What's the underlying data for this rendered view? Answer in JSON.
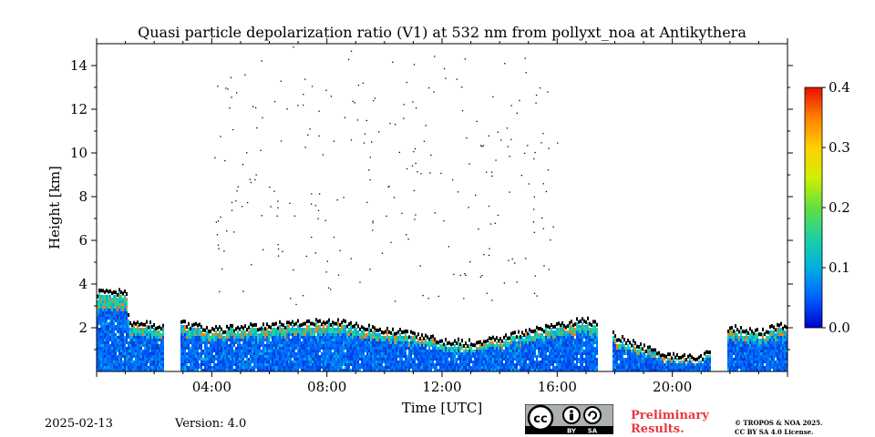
{
  "footer": {
    "date": "2025-02-13",
    "version": "Version: 4.0",
    "preliminary_line1": "Preliminary",
    "preliminary_line2": "Results.",
    "copyright_line1": "© TROPOS & NOA 2025.",
    "copyright_line2": "CC BY SA 4.0 License.",
    "license_badge": {
      "cc": "cc",
      "by": "BY",
      "sa": "SA"
    }
  },
  "chart_data": {
    "type": "heatmap",
    "title": "Quasi particle depolarization ratio (V1) at 532 nm from pollyxt_noa at Antikythera",
    "xlabel": "Time [UTC]",
    "ylabel": "Height [km]",
    "xlim": [
      "00:00",
      "24:00"
    ],
    "ylim": [
      0,
      15
    ],
    "x_ticks": [
      "04:00",
      "08:00",
      "12:00",
      "16:00",
      "20:00"
    ],
    "x_tick_hours": [
      4,
      8,
      12,
      16,
      20
    ],
    "y_ticks": [
      2,
      4,
      6,
      8,
      10,
      12,
      14
    ],
    "colorbar": {
      "range": [
        0.0,
        0.4
      ],
      "ticks": [
        "0.0",
        "0.1",
        "0.2",
        "0.3",
        "0.4"
      ],
      "colormap": "jet",
      "colors": [
        "#0000c8",
        "#0060ff",
        "#00b0e0",
        "#20d0a0",
        "#60e040",
        "#d0f000",
        "#ffd000",
        "#ff8000",
        "#e81000"
      ]
    },
    "data_gaps_hours": [
      [
        2.3,
        2.9
      ],
      [
        17.4,
        17.9
      ],
      [
        21.3,
        21.9
      ]
    ],
    "boundary_layer_top_km": [
      [
        0.0,
        3.5
      ],
      [
        1.0,
        3.5
      ],
      [
        1.1,
        2.1
      ],
      [
        2.2,
        2.0
      ],
      [
        3.0,
        2.1
      ],
      [
        4.0,
        1.8
      ],
      [
        5.0,
        1.9
      ],
      [
        6.0,
        2.0
      ],
      [
        7.0,
        2.1
      ],
      [
        8.0,
        2.2
      ],
      [
        9.0,
        2.0
      ],
      [
        10.0,
        1.8
      ],
      [
        11.0,
        1.6
      ],
      [
        12.0,
        1.3
      ],
      [
        13.0,
        1.2
      ],
      [
        14.0,
        1.4
      ],
      [
        15.0,
        1.7
      ],
      [
        16.0,
        2.0
      ],
      [
        17.0,
        2.3
      ],
      [
        18.0,
        1.5
      ],
      [
        19.0,
        1.0
      ],
      [
        20.0,
        0.6
      ],
      [
        21.0,
        0.5
      ],
      [
        22.0,
        1.9
      ],
      [
        23.0,
        1.7
      ],
      [
        24.0,
        2.1
      ]
    ]
  }
}
